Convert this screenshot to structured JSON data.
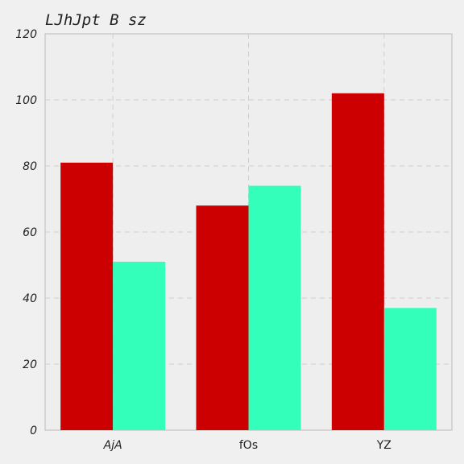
{
  "chart_data": {
    "type": "bar",
    "title": "LJhJpt B sz",
    "xlabel": "",
    "ylabel": "",
    "categories": [
      "AjA",
      "fOs",
      "YZ"
    ],
    "series": [
      {
        "values": [
          81,
          68,
          102
        ],
        "color": "#cc0000"
      },
      {
        "values": [
          51,
          74,
          37
        ],
        "color": "#33ffbb"
      }
    ],
    "ylim": [
      0,
      120
    ],
    "yticks": [
      0,
      20,
      40,
      60,
      80,
      100,
      120
    ],
    "grid": true,
    "legend": "none",
    "colors": {
      "background": "#f0f0f0",
      "plot_background": "#eeeeee",
      "grid": "#cfcfcf",
      "axis": "#bbbbbb"
    }
  }
}
